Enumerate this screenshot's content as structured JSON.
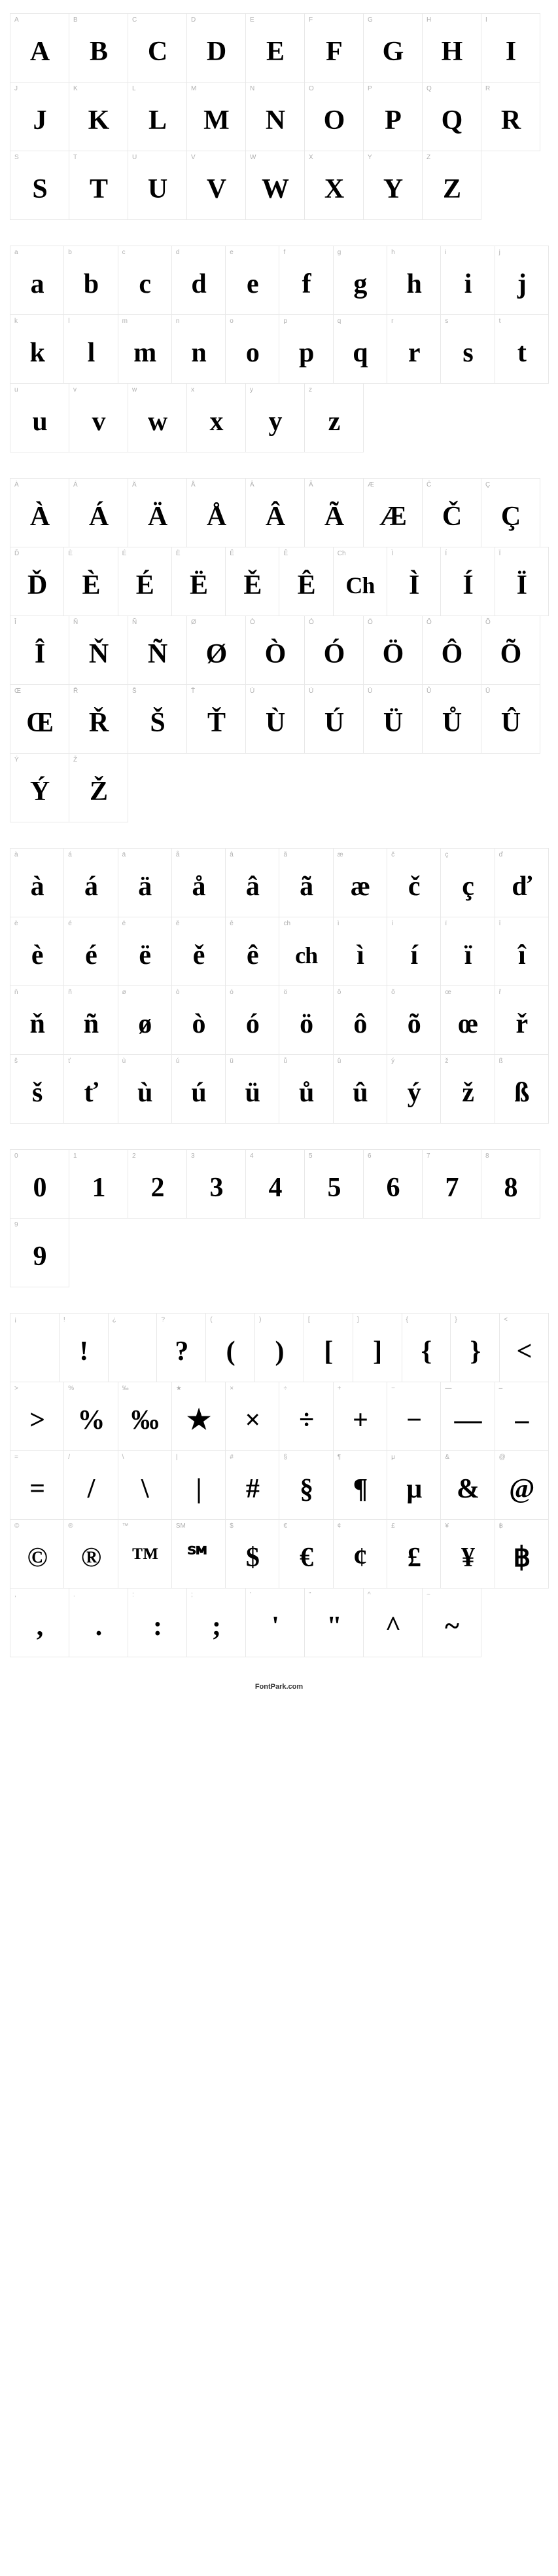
{
  "footer": "FontPark.com",
  "colors": {
    "background": "#ffffff",
    "cell_border": "#e8e8e8",
    "label_text": "#b0b0b0",
    "glyph_text": "#000000"
  },
  "cell": {
    "width": 91,
    "height": 106
  },
  "label_fontsize": 10,
  "glyph_fontsize": 42,
  "sections": [
    {
      "rows": [
        [
          {
            "label": "A",
            "glyph": "A"
          },
          {
            "label": "B",
            "glyph": "B"
          },
          {
            "label": "C",
            "glyph": "C"
          },
          {
            "label": "D",
            "glyph": "D"
          },
          {
            "label": "E",
            "glyph": "E"
          },
          {
            "label": "F",
            "glyph": "F"
          },
          {
            "label": "G",
            "glyph": "G"
          },
          {
            "label": "H",
            "glyph": "H"
          },
          {
            "label": "I",
            "glyph": "I"
          }
        ],
        [
          {
            "label": "J",
            "glyph": "J"
          },
          {
            "label": "K",
            "glyph": "K"
          },
          {
            "label": "L",
            "glyph": "L"
          },
          {
            "label": "M",
            "glyph": "M"
          },
          {
            "label": "N",
            "glyph": "N"
          },
          {
            "label": "O",
            "glyph": "O"
          },
          {
            "label": "P",
            "glyph": "P"
          },
          {
            "label": "Q",
            "glyph": "Q"
          },
          {
            "label": "R",
            "glyph": "R"
          }
        ],
        [
          {
            "label": "S",
            "glyph": "S"
          },
          {
            "label": "T",
            "glyph": "T"
          },
          {
            "label": "U",
            "glyph": "U"
          },
          {
            "label": "V",
            "glyph": "V"
          },
          {
            "label": "W",
            "glyph": "W"
          },
          {
            "label": "X",
            "glyph": "X"
          },
          {
            "label": "Y",
            "glyph": "Y"
          },
          {
            "label": "Z",
            "glyph": "Z"
          }
        ]
      ]
    },
    {
      "rows": [
        [
          {
            "label": "a",
            "glyph": "a"
          },
          {
            "label": "b",
            "glyph": "b"
          },
          {
            "label": "c",
            "glyph": "c"
          },
          {
            "label": "d",
            "glyph": "d"
          },
          {
            "label": "e",
            "glyph": "e"
          },
          {
            "label": "f",
            "glyph": "f"
          },
          {
            "label": "g",
            "glyph": "g"
          },
          {
            "label": "h",
            "glyph": "h"
          },
          {
            "label": "i",
            "glyph": "i"
          },
          {
            "label": "j",
            "glyph": "j"
          }
        ],
        [
          {
            "label": "k",
            "glyph": "k"
          },
          {
            "label": "l",
            "glyph": "l"
          },
          {
            "label": "m",
            "glyph": "m"
          },
          {
            "label": "n",
            "glyph": "n"
          },
          {
            "label": "o",
            "glyph": "o"
          },
          {
            "label": "p",
            "glyph": "p"
          },
          {
            "label": "q",
            "glyph": "q"
          },
          {
            "label": "r",
            "glyph": "r"
          },
          {
            "label": "s",
            "glyph": "s"
          },
          {
            "label": "t",
            "glyph": "t"
          }
        ],
        [
          {
            "label": "u",
            "glyph": "u"
          },
          {
            "label": "v",
            "glyph": "v"
          },
          {
            "label": "w",
            "glyph": "w"
          },
          {
            "label": "x",
            "glyph": "x"
          },
          {
            "label": "y",
            "glyph": "y"
          },
          {
            "label": "z",
            "glyph": "z"
          }
        ]
      ]
    },
    {
      "rows": [
        [
          {
            "label": "À",
            "glyph": "À"
          },
          {
            "label": "Á",
            "glyph": "Á"
          },
          {
            "label": "Ä",
            "glyph": "Ä"
          },
          {
            "label": "Å",
            "glyph": "Å"
          },
          {
            "label": "Â",
            "glyph": "Â"
          },
          {
            "label": "Ã",
            "glyph": "Ã"
          },
          {
            "label": "Æ",
            "glyph": "Æ"
          },
          {
            "label": "Č",
            "glyph": "Č"
          },
          {
            "label": "Ç",
            "glyph": "Ç"
          }
        ],
        [
          {
            "label": "Ď",
            "glyph": "Ď"
          },
          {
            "label": "È",
            "glyph": "È"
          },
          {
            "label": "É",
            "glyph": "É"
          },
          {
            "label": "Ë",
            "glyph": "Ë"
          },
          {
            "label": "Ě",
            "glyph": "Ě"
          },
          {
            "label": "Ê",
            "glyph": "Ê"
          },
          {
            "label": "Ch",
            "glyph": "Ch"
          },
          {
            "label": "Ì",
            "glyph": "Ì"
          },
          {
            "label": "Í",
            "glyph": "Í"
          },
          {
            "label": "Ï",
            "glyph": "Ï"
          }
        ],
        [
          {
            "label": "Î",
            "glyph": "Î"
          },
          {
            "label": "Ň",
            "glyph": "Ň"
          },
          {
            "label": "Ñ",
            "glyph": "Ñ"
          },
          {
            "label": "Ø",
            "glyph": "Ø"
          },
          {
            "label": "Ò",
            "glyph": "Ò"
          },
          {
            "label": "Ó",
            "glyph": "Ó"
          },
          {
            "label": "Ö",
            "glyph": "Ö"
          },
          {
            "label": "Ô",
            "glyph": "Ô"
          },
          {
            "label": "Õ",
            "glyph": "Õ"
          }
        ],
        [
          {
            "label": "Œ",
            "glyph": "Œ"
          },
          {
            "label": "Ř",
            "glyph": "Ř"
          },
          {
            "label": "Š",
            "glyph": "Š"
          },
          {
            "label": "Ť",
            "glyph": "Ť"
          },
          {
            "label": "Ù",
            "glyph": "Ù"
          },
          {
            "label": "Ú",
            "glyph": "Ú"
          },
          {
            "label": "Ü",
            "glyph": "Ü"
          },
          {
            "label": "Ů",
            "glyph": "Ů"
          },
          {
            "label": "Û",
            "glyph": "Û"
          }
        ],
        [
          {
            "label": "Ý",
            "glyph": "Ý"
          },
          {
            "label": "Ž",
            "glyph": "Ž"
          }
        ]
      ]
    },
    {
      "rows": [
        [
          {
            "label": "à",
            "glyph": "à"
          },
          {
            "label": "á",
            "glyph": "á"
          },
          {
            "label": "ä",
            "glyph": "ä"
          },
          {
            "label": "å",
            "glyph": "å"
          },
          {
            "label": "â",
            "glyph": "â"
          },
          {
            "label": "ã",
            "glyph": "ã"
          },
          {
            "label": "æ",
            "glyph": "æ"
          },
          {
            "label": "č",
            "glyph": "č"
          },
          {
            "label": "ç",
            "glyph": "ç"
          },
          {
            "label": "ď",
            "glyph": "ď"
          }
        ],
        [
          {
            "label": "è",
            "glyph": "è"
          },
          {
            "label": "é",
            "glyph": "é"
          },
          {
            "label": "ë",
            "glyph": "ë"
          },
          {
            "label": "ě",
            "glyph": "ě"
          },
          {
            "label": "ê",
            "glyph": "ê"
          },
          {
            "label": "ch",
            "glyph": "ch"
          },
          {
            "label": "ì",
            "glyph": "ì"
          },
          {
            "label": "í",
            "glyph": "í"
          },
          {
            "label": "ï",
            "glyph": "ï"
          },
          {
            "label": "î",
            "glyph": "î"
          }
        ],
        [
          {
            "label": "ň",
            "glyph": "ň"
          },
          {
            "label": "ñ",
            "glyph": "ñ"
          },
          {
            "label": "ø",
            "glyph": "ø"
          },
          {
            "label": "ò",
            "glyph": "ò"
          },
          {
            "label": "ó",
            "glyph": "ó"
          },
          {
            "label": "ö",
            "glyph": "ö"
          },
          {
            "label": "ô",
            "glyph": "ô"
          },
          {
            "label": "õ",
            "glyph": "õ"
          },
          {
            "label": "œ",
            "glyph": "œ"
          },
          {
            "label": "ř",
            "glyph": "ř"
          }
        ],
        [
          {
            "label": "š",
            "glyph": "š"
          },
          {
            "label": "ť",
            "glyph": "ť"
          },
          {
            "label": "ù",
            "glyph": "ù"
          },
          {
            "label": "ú",
            "glyph": "ú"
          },
          {
            "label": "ü",
            "glyph": "ü"
          },
          {
            "label": "ů",
            "glyph": "ů"
          },
          {
            "label": "û",
            "glyph": "û"
          },
          {
            "label": "ý",
            "glyph": "ý"
          },
          {
            "label": "ž",
            "glyph": "ž"
          },
          {
            "label": "ß",
            "glyph": "ß"
          }
        ]
      ]
    },
    {
      "rows": [
        [
          {
            "label": "0",
            "glyph": "0"
          },
          {
            "label": "1",
            "glyph": "1"
          },
          {
            "label": "2",
            "glyph": "2"
          },
          {
            "label": "3",
            "glyph": "3"
          },
          {
            "label": "4",
            "glyph": "4"
          },
          {
            "label": "5",
            "glyph": "5"
          },
          {
            "label": "6",
            "glyph": "6"
          },
          {
            "label": "7",
            "glyph": "7"
          },
          {
            "label": "8",
            "glyph": "8"
          }
        ],
        [
          {
            "label": "9",
            "glyph": "9"
          }
        ]
      ]
    },
    {
      "rows": [
        [
          {
            "label": "¡",
            "glyph": ""
          },
          {
            "label": "!",
            "glyph": "!"
          },
          {
            "label": "¿",
            "glyph": ""
          },
          {
            "label": "?",
            "glyph": "?"
          },
          {
            "label": "(",
            "glyph": "("
          },
          {
            "label": ")",
            "glyph": ")"
          },
          {
            "label": "[",
            "glyph": "["
          },
          {
            "label": "]",
            "glyph": "]"
          },
          {
            "label": "{",
            "glyph": "{"
          },
          {
            "label": "}",
            "glyph": "}"
          },
          {
            "label": "<",
            "glyph": "<"
          }
        ],
        [
          {
            "label": ">",
            "glyph": ">"
          },
          {
            "label": "%",
            "glyph": "%"
          },
          {
            "label": "‰",
            "glyph": "‰"
          },
          {
            "label": "★",
            "glyph": "★"
          },
          {
            "label": "×",
            "glyph": "×"
          },
          {
            "label": "÷",
            "glyph": "÷"
          },
          {
            "label": "+",
            "glyph": "+"
          },
          {
            "label": "−",
            "glyph": "−"
          },
          {
            "label": "—",
            "glyph": "—"
          },
          {
            "label": "–",
            "glyph": "–"
          }
        ],
        [
          {
            "label": "=",
            "glyph": "="
          },
          {
            "label": "/",
            "glyph": "/"
          },
          {
            "label": "\\",
            "glyph": "\\"
          },
          {
            "label": "|",
            "glyph": "|"
          },
          {
            "label": "#",
            "glyph": "#"
          },
          {
            "label": "§",
            "glyph": "§"
          },
          {
            "label": "¶",
            "glyph": "¶"
          },
          {
            "label": "μ",
            "glyph": "μ"
          },
          {
            "label": "&",
            "glyph": "&"
          },
          {
            "label": "@",
            "glyph": "@"
          }
        ],
        [
          {
            "label": "©",
            "glyph": "©"
          },
          {
            "label": "®",
            "glyph": "®"
          },
          {
            "label": "™",
            "glyph": "™"
          },
          {
            "label": "SM",
            "glyph": "℠"
          },
          {
            "label": "$",
            "glyph": "$"
          },
          {
            "label": "€",
            "glyph": "€"
          },
          {
            "label": "¢",
            "glyph": "¢"
          },
          {
            "label": "£",
            "glyph": "£"
          },
          {
            "label": "¥",
            "glyph": "¥"
          },
          {
            "label": "฿",
            "glyph": "฿"
          }
        ],
        [
          {
            "label": ",",
            "glyph": ","
          },
          {
            "label": ".",
            "glyph": "."
          },
          {
            "label": ":",
            "glyph": ":"
          },
          {
            "label": ";",
            "glyph": ";"
          },
          {
            "label": "'",
            "glyph": "'"
          },
          {
            "label": "\"",
            "glyph": "\""
          },
          {
            "label": "^",
            "glyph": "^"
          },
          {
            "label": "~",
            "glyph": "~"
          }
        ]
      ]
    }
  ]
}
